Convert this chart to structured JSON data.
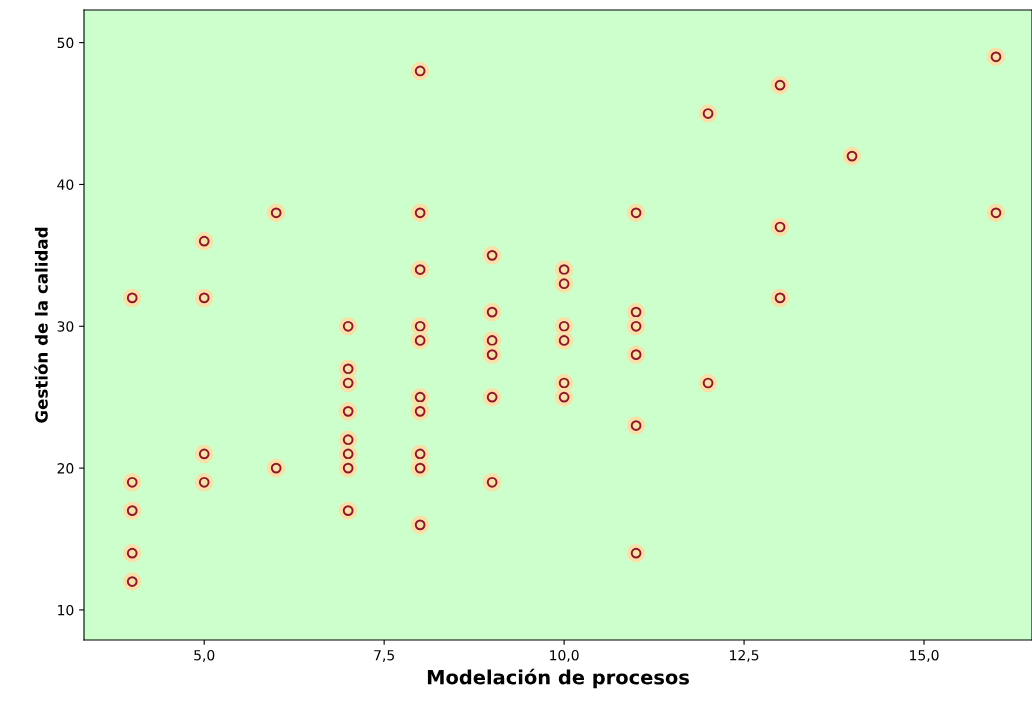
{
  "chart_data": {
    "type": "scatter",
    "xlabel": "Modelación de procesos",
    "ylabel": "Gestión de la calidad",
    "x": [
      4,
      4,
      4,
      4,
      4,
      5,
      5,
      5,
      5,
      6,
      6,
      7,
      7,
      7,
      7,
      7,
      7,
      7,
      7,
      8,
      8,
      8,
      8,
      8,
      8,
      8,
      8,
      8,
      8,
      9,
      9,
      9,
      9,
      9,
      9,
      10,
      10,
      10,
      10,
      10,
      10,
      11,
      11,
      11,
      11,
      11,
      11,
      12,
      12,
      13,
      13,
      13,
      14,
      16,
      16
    ],
    "series": [
      {
        "color": "#8b1a2a",
        "values": [
          32,
          19,
          17,
          14,
          12,
          36,
          32,
          21,
          19,
          38,
          20,
          30,
          27,
          26,
          24,
          22,
          21,
          20,
          17,
          48,
          38,
          34,
          30,
          29,
          25,
          24,
          21,
          20,
          16,
          35,
          31,
          29,
          28,
          25,
          19,
          34,
          33,
          30,
          29,
          26,
          25,
          38,
          31,
          30,
          28,
          23,
          14,
          45,
          26,
          47,
          37,
          32,
          42,
          49,
          38
        ]
      }
    ],
    "xlim": [
      3.33,
      16.5
    ],
    "ylim": [
      7.88,
      52.3
    ],
    "xticks": [
      {
        "value": 5,
        "label": "5,0"
      },
      {
        "value": 7.5,
        "label": "7,5"
      },
      {
        "value": 10,
        "label": "10,0"
      },
      {
        "value": 12.5,
        "label": "12,5"
      },
      {
        "value": 15,
        "label": "15,0"
      }
    ],
    "yticks": [
      10,
      20,
      30,
      40,
      50
    ],
    "marker": "circle",
    "grid": false,
    "legend": false
  }
}
